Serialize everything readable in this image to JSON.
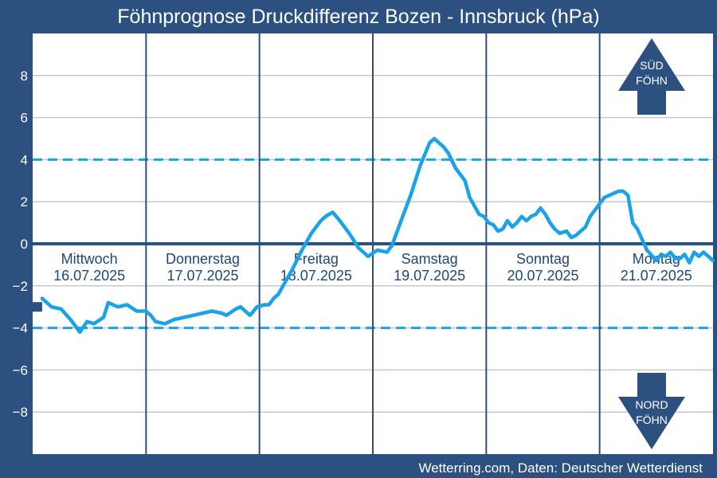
{
  "title": "Föhnprognose Druckdifferenz Bozen - Innsbruck (hPa)",
  "credit": "Wetterring.com, Daten: Deutscher Wetterdienst",
  "colors": {
    "background": "#2c5080",
    "plot": "#ffffff",
    "line": "#1aa3e8",
    "threshold": "#1aa3e8",
    "zero_line": "#2c5080",
    "day_separator": "#2c5080",
    "grid": "#c8c8c8",
    "marker": "#2c5080",
    "arrow": "#2c5080"
  },
  "chart_data": {
    "type": "line",
    "title": "Föhnprognose Druckdifferenz Bozen - Innsbruck (hPa)",
    "ylabel": "",
    "xlabel": "",
    "ylim": [
      -10,
      10
    ],
    "xlim": [
      0,
      144
    ],
    "y_ticks": [
      8,
      6,
      4,
      2,
      0,
      -2,
      -4,
      -6,
      -8
    ],
    "y_tick_labels": [
      "8",
      "6",
      "4",
      "2",
      "0",
      "−2",
      "−4",
      "−6",
      "−8"
    ],
    "grid": true,
    "thresholds": [
      4,
      -4
    ],
    "zero_line": 0,
    "day_separators": [
      24,
      48,
      72,
      96,
      120
    ],
    "day_labels": [
      {
        "day": "Mittwoch",
        "date": "16.07.2025"
      },
      {
        "day": "Donnerstag",
        "date": "17.07.2025"
      },
      {
        "day": "Freitag",
        "date": "18.07.2025"
      },
      {
        "day": "Samstag",
        "date": "19.07.2025"
      },
      {
        "day": "Sonntag",
        "date": "20.07.2025"
      },
      {
        "day": "Montag",
        "date": "21.07.2025"
      }
    ],
    "current_marker": {
      "x": 1,
      "y": -3.0
    },
    "series": [
      {
        "x": [
          2,
          4,
          6,
          8,
          10,
          11.5,
          13,
          15,
          16,
          18,
          20,
          22,
          24,
          25,
          26,
          28,
          30,
          32,
          34,
          36,
          38,
          40,
          41,
          43,
          44,
          46,
          47.5,
          49,
          50,
          51,
          52,
          53,
          55,
          57,
          59,
          61,
          62,
          63.5,
          65,
          67,
          69,
          71,
          73,
          75,
          76,
          77,
          78.5,
          80,
          82,
          84,
          85,
          86,
          87,
          88,
          89.5,
          90.5,
          91.5,
          92.5,
          93.5,
          94.5,
          95.5,
          96.5,
          97.5,
          98.5,
          99.5,
          100.5,
          101.5,
          102.5,
          103.5,
          104.5,
          105.5,
          106.5,
          107.5,
          108.5,
          109.5,
          110.5,
          111.5,
          113,
          114,
          115,
          116,
          117,
          118,
          119,
          121,
          124,
          125,
          126,
          127,
          128,
          130,
          132,
          133,
          134,
          135,
          136,
          137,
          138,
          139,
          140,
          141,
          142,
          143,
          144
        ],
        "y": [
          -2.6,
          -3.0,
          -3.1,
          -3.6,
          -4.2,
          -3.7,
          -3.8,
          -3.5,
          -2.8,
          -3.0,
          -2.9,
          -3.2,
          -3.2,
          -3.4,
          -3.7,
          -3.8,
          -3.6,
          -3.5,
          -3.4,
          -3.3,
          -3.2,
          -3.3,
          -3.4,
          -3.1,
          -3.0,
          -3.4,
          -3.0,
          -2.9,
          -2.9,
          -2.6,
          -2.4,
          -2.0,
          -1.2,
          -0.3,
          0.5,
          1.1,
          1.3,
          1.5,
          1.1,
          0.5,
          -0.2,
          -0.6,
          -0.3,
          -0.4,
          -0.1,
          0.5,
          1.4,
          2.3,
          3.7,
          4.8,
          5.0,
          4.8,
          4.6,
          4.3,
          3.6,
          3.3,
          3.0,
          2.2,
          1.8,
          1.4,
          1.3,
          1.0,
          0.9,
          0.6,
          0.7,
          1.1,
          0.8,
          1.0,
          1.3,
          1.1,
          1.3,
          1.4,
          1.7,
          1.4,
          1.0,
          0.7,
          0.5,
          0.6,
          0.3,
          0.4,
          0.6,
          0.8,
          1.3,
          1.6,
          2.2,
          2.5,
          2.5,
          2.3,
          1.0,
          0.7,
          -0.3,
          -0.8,
          -0.5,
          -0.6,
          -0.4,
          -0.7,
          -0.7,
          -0.5,
          -0.9,
          -0.4,
          -0.6,
          -0.4,
          -0.6,
          -0.8
        ]
      }
    ],
    "annotations": [
      {
        "position": "top-right",
        "direction": "up",
        "lines": [
          "SÜD",
          "FÖHN"
        ]
      },
      {
        "position": "bottom-right",
        "direction": "down",
        "lines": [
          "NORD",
          "FÖHN"
        ]
      }
    ]
  }
}
